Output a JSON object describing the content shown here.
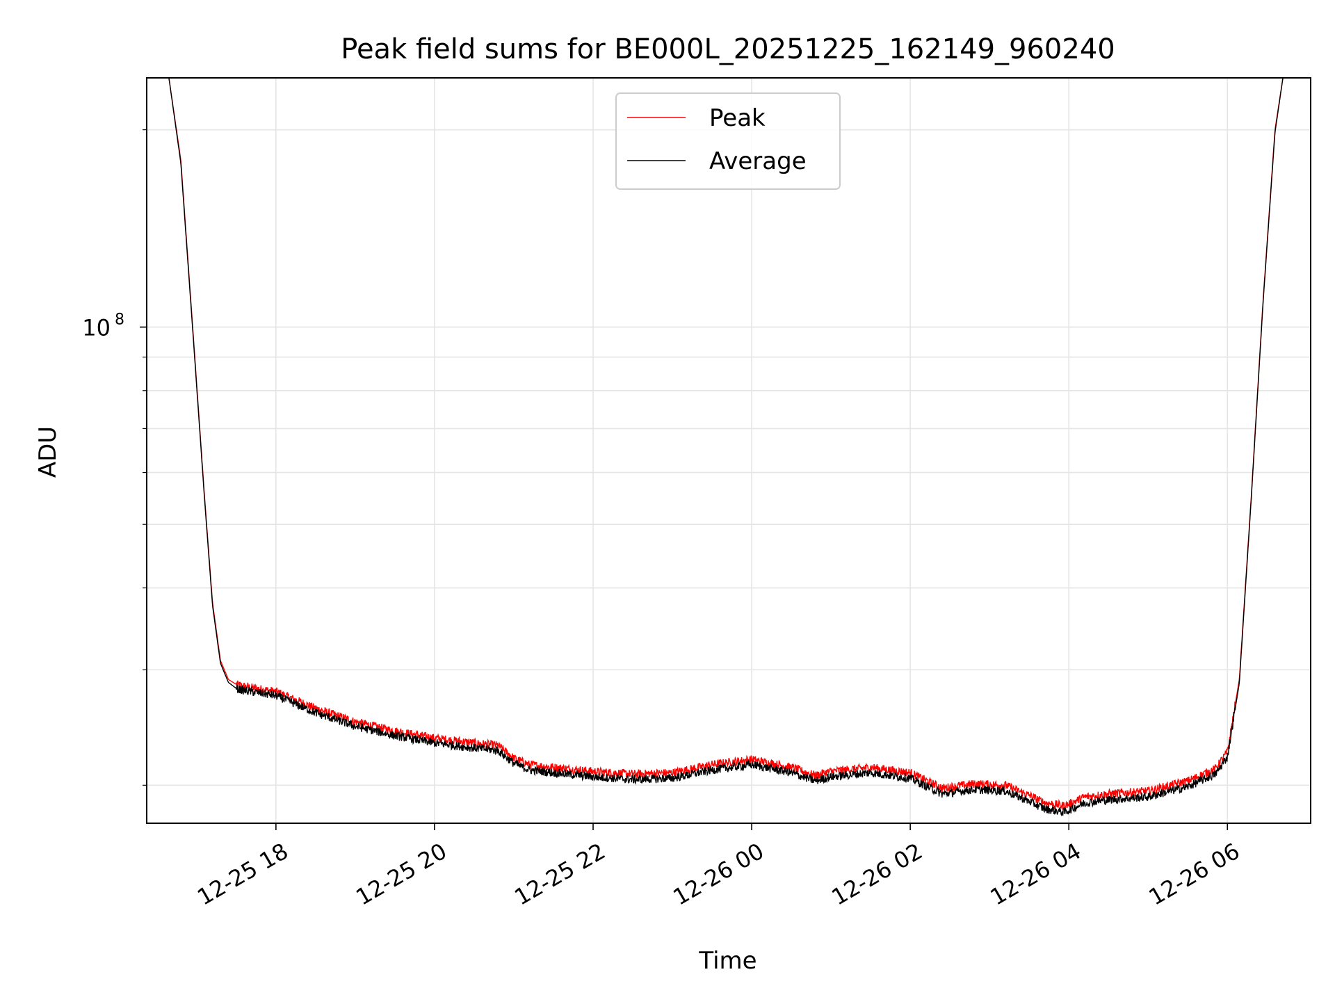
{
  "chart_data": {
    "type": "line",
    "title": "Peak field sums for BE000L_20251225_162149_960240",
    "xlabel": "Time",
    "ylabel": "ADU",
    "yscale": "log",
    "ylim": [
      17500000,
      240000000
    ],
    "xlim_hours": [
      16.37,
      31.05
    ],
    "x_units": "hours since 2025-12-25 00:00",
    "grid": true,
    "legend_position": "upper center",
    "x_ticks": [
      {
        "value": 18,
        "label": "12-25 18"
      },
      {
        "value": 20,
        "label": "12-25 20"
      },
      {
        "value": 22,
        "label": "12-25 22"
      },
      {
        "value": 24,
        "label": "12-26 00"
      },
      {
        "value": 26,
        "label": "12-26 02"
      },
      {
        "value": 28,
        "label": "12-26 04"
      },
      {
        "value": 30,
        "label": "12-26 06"
      }
    ],
    "y_major_ticks": [
      {
        "value": 100000000,
        "label_base": "10",
        "label_exp": "8"
      }
    ],
    "y_minor_ticks": [
      20000000,
      30000000,
      40000000,
      50000000,
      60000000,
      70000000,
      80000000,
      90000000,
      200000000
    ],
    "series": [
      {
        "name": "Peak",
        "color": "#ff0000",
        "x": [
          16.65,
          16.8,
          16.95,
          17.1,
          17.2,
          17.3,
          17.4,
          17.5,
          17.6,
          18.0,
          18.5,
          19.0,
          19.5,
          20.0,
          20.5,
          20.8,
          21.0,
          21.2,
          21.5,
          22.0,
          22.5,
          23.0,
          23.5,
          24.0,
          24.5,
          24.8,
          25.0,
          25.5,
          26.0,
          26.4,
          26.8,
          27.2,
          27.5,
          27.7,
          27.95,
          28.2,
          28.5,
          29.0,
          29.5,
          29.85,
          30.0,
          30.15,
          30.3,
          30.45,
          30.6,
          30.7,
          30.75
        ],
        "y": [
          240000000,
          180000000,
          100000000,
          55000000,
          38000000,
          31000000,
          29000000,
          28500000,
          28300000,
          27800000,
          26200000,
          25000000,
          24200000,
          23600000,
          23200000,
          23000000,
          22000000,
          21500000,
          21300000,
          21000000,
          20800000,
          20900000,
          21500000,
          21900000,
          21300000,
          20700000,
          21000000,
          21300000,
          20900000,
          19800000,
          20100000,
          20000000,
          19300000,
          18800000,
          18600000,
          19200000,
          19400000,
          19600000,
          20300000,
          21200000,
          22500000,
          29000000,
          55000000,
          110000000,
          200000000,
          240000000,
          240000000
        ]
      },
      {
        "name": "Average",
        "color": "#000000",
        "x": [
          16.65,
          16.8,
          16.95,
          17.1,
          17.2,
          17.3,
          17.4,
          17.5,
          17.6,
          18.0,
          18.5,
          19.0,
          19.5,
          20.0,
          20.5,
          20.8,
          21.0,
          21.2,
          21.5,
          22.0,
          22.5,
          23.0,
          23.5,
          24.0,
          24.5,
          24.8,
          25.0,
          25.5,
          26.0,
          26.4,
          26.8,
          27.2,
          27.5,
          27.7,
          27.95,
          28.2,
          28.5,
          29.0,
          29.5,
          29.85,
          30.0,
          30.15,
          30.3,
          30.45,
          30.6,
          30.7,
          30.75
        ],
        "y": [
          240000000,
          178000000,
          99000000,
          54500000,
          37600000,
          30700000,
          28700000,
          28100000,
          27900000,
          27400000,
          25800000,
          24600000,
          23800000,
          23200000,
          22800000,
          22600000,
          21600000,
          21100000,
          20900000,
          20600000,
          20400000,
          20500000,
          21100000,
          21500000,
          20900000,
          20300000,
          20600000,
          20900000,
          20500000,
          19400000,
          19700000,
          19600000,
          18900000,
          18400000,
          18200000,
          18800000,
          19000000,
          19200000,
          19900000,
          20800000,
          22100000,
          28600000,
          54500000,
          109000000,
          198000000,
          240000000,
          240000000
        ]
      }
    ]
  }
}
